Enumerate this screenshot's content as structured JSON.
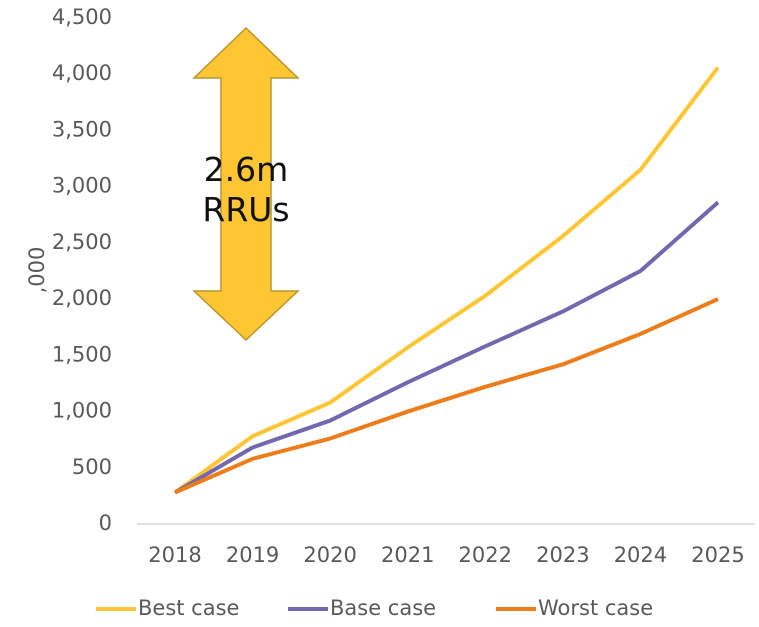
{
  "chart_data": {
    "type": "line",
    "y_label": ",000",
    "annotation": "2.6m RRUs",
    "categories": [
      "2018",
      "2019",
      "2020",
      "2021",
      "2022",
      "2023",
      "2024",
      "2025"
    ],
    "series": [
      {
        "name": "Best case",
        "color": "#FFC533",
        "values": [
          280,
          780,
          1080,
          1570,
          2030,
          2560,
          3150,
          4060
        ]
      },
      {
        "name": "Base case",
        "color": "#7367AE",
        "values": [
          280,
          680,
          920,
          1260,
          1580,
          1890,
          2250,
          2860
        ]
      },
      {
        "name": "Worst case",
        "color": "#ED7D1A",
        "values": [
          280,
          580,
          760,
          1000,
          1220,
          1420,
          1690,
          2000
        ]
      }
    ],
    "ylim": [
      0,
      4500
    ],
    "yticks": [
      0,
      500,
      {
        "value": 1000,
        "label": "1,000"
      },
      {
        "value": 1500,
        "label": "1,500"
      },
      {
        "value": 2000,
        "label": "2,000"
      },
      {
        "value": 2500,
        "label": "2,500"
      },
      {
        "value": 3000,
        "label": "3,000"
      },
      {
        "value": 3500,
        "label": "3,500"
      },
      {
        "value": 4000,
        "label": "4,000"
      },
      {
        "value": 4500,
        "label": "4,500"
      }
    ],
    "grid": false,
    "legend": "bottom"
  }
}
